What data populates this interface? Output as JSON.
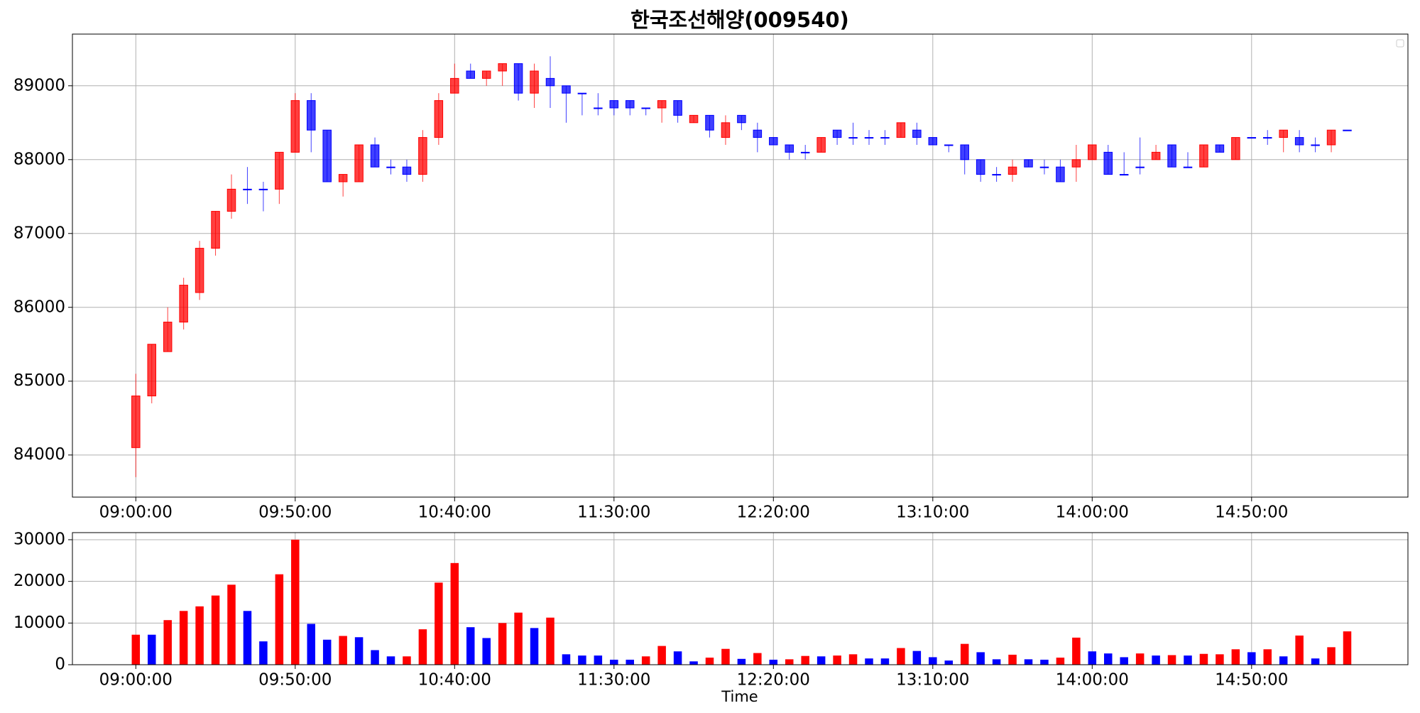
{
  "chart_data": [
    {
      "type": "candlestick",
      "title": "한국조선해양(009540)",
      "categories": [
        "09:00:00",
        null,
        null,
        null,
        null,
        null,
        null,
        null,
        null,
        null,
        "09:50:00",
        null,
        null,
        null,
        null,
        null,
        null,
        null,
        null,
        null,
        "10:40:00",
        null,
        null,
        null,
        null,
        null,
        null,
        null,
        null,
        null,
        "11:30:00",
        null,
        null,
        null,
        null,
        null,
        null,
        null,
        null,
        null,
        "12:20:00",
        null,
        null,
        null,
        null,
        null,
        null,
        null,
        null,
        null,
        "13:10:00",
        null,
        null,
        null,
        null,
        null,
        null,
        null,
        null,
        null,
        "14:00:00",
        null,
        null,
        null,
        null,
        null,
        null,
        null,
        null,
        null,
        "14:50:00",
        null,
        null,
        null,
        null,
        null,
        null
      ],
      "open": [
        84100,
        84800,
        85400,
        85800,
        86200,
        86800,
        87300,
        87600,
        87600,
        87600,
        88100,
        88800,
        88400,
        87700,
        87700,
        88200,
        87900,
        87900,
        87800,
        88300,
        88900,
        89200,
        89100,
        89200,
        89300,
        88900,
        89100,
        89000,
        88900,
        88700,
        88800,
        88800,
        88700,
        88700,
        88800,
        88500,
        88600,
        88300,
        88600,
        88400,
        88300,
        88200,
        88100,
        88100,
        88400,
        88300,
        88300,
        88300,
        88300,
        88400,
        88300,
        88200,
        88200,
        88000,
        87800,
        87800,
        88000,
        87900,
        87900,
        87900,
        88000,
        88100,
        87800,
        87900,
        88000,
        88200,
        87900,
        87900,
        88200,
        88000,
        88300,
        88300,
        88300,
        88300,
        88200,
        88200,
        88400
      ],
      "high": [
        85100,
        85500,
        86000,
        86400,
        86900,
        87300,
        87800,
        87900,
        87700,
        88100,
        88900,
        88900,
        88400,
        87800,
        88200,
        88300,
        88000,
        88000,
        88400,
        88900,
        89300,
        89300,
        89200,
        89300,
        89300,
        89300,
        89400,
        89000,
        88900,
        88900,
        88800,
        88800,
        88700,
        88800,
        88800,
        88600,
        88600,
        88600,
        88600,
        88500,
        88300,
        88200,
        88200,
        88300,
        88400,
        88500,
        88400,
        88400,
        88500,
        88500,
        88300,
        88200,
        88200,
        88000,
        87900,
        88000,
        88000,
        88000,
        88000,
        88200,
        88200,
        88200,
        88100,
        88300,
        88200,
        88200,
        88100,
        88200,
        88200,
        88300,
        88300,
        88400,
        88400,
        88400,
        88300,
        88400,
        88400
      ],
      "low": [
        83700,
        84700,
        85400,
        85700,
        86100,
        86700,
        87200,
        87400,
        87300,
        87400,
        88100,
        88100,
        87700,
        87500,
        87700,
        87900,
        87800,
        87700,
        87700,
        88200,
        88900,
        89100,
        89000,
        89000,
        88800,
        88700,
        88700,
        88500,
        88600,
        88600,
        88600,
        88600,
        88600,
        88500,
        88500,
        88500,
        88300,
        88200,
        88400,
        88100,
        88200,
        88000,
        88000,
        88100,
        88200,
        88200,
        88200,
        88200,
        88300,
        88200,
        88200,
        88100,
        87800,
        87700,
        87700,
        87700,
        87900,
        87800,
        87700,
        87700,
        88000,
        87800,
        87800,
        87800,
        88000,
        87900,
        87900,
        87900,
        88100,
        88000,
        88300,
        88200,
        88100,
        88100,
        88100,
        88100,
        88400
      ],
      "close": [
        84800,
        85500,
        85800,
        86300,
        86800,
        87300,
        87600,
        87600,
        87600,
        88100,
        88800,
        88400,
        87700,
        87800,
        88200,
        87900,
        87900,
        87800,
        88300,
        88800,
        89100,
        89100,
        89200,
        89300,
        88900,
        89200,
        89000,
        88900,
        88900,
        88700,
        88700,
        88700,
        88700,
        88800,
        88600,
        88600,
        88400,
        88500,
        88500,
        88300,
        88200,
        88100,
        88100,
        88300,
        88300,
        88300,
        88300,
        88300,
        88500,
        88300,
        88200,
        88200,
        88000,
        87800,
        87800,
        87900,
        87900,
        87900,
        87700,
        88000,
        88200,
        87800,
        87800,
        87900,
        88100,
        87900,
        87900,
        88200,
        88100,
        88300,
        88300,
        88300,
        88400,
        88200,
        88200,
        88400,
        88400
      ],
      "up_color": "#ff0000",
      "down_color": "#0000ff",
      "ylim": [
        83430,
        89700
      ],
      "yticks": [
        84000,
        85000,
        86000,
        87000,
        88000,
        89000
      ],
      "grid": true
    },
    {
      "type": "bar",
      "x_label": "Time",
      "categories": [
        "09:00:00",
        null,
        null,
        null,
        null,
        null,
        null,
        null,
        null,
        null,
        "09:50:00",
        null,
        null,
        null,
        null,
        null,
        null,
        null,
        null,
        null,
        "10:40:00",
        null,
        null,
        null,
        null,
        null,
        null,
        null,
        null,
        null,
        "11:30:00",
        null,
        null,
        null,
        null,
        null,
        null,
        null,
        null,
        null,
        "12:20:00",
        null,
        null,
        null,
        null,
        null,
        null,
        null,
        null,
        null,
        "13:10:00",
        null,
        null,
        null,
        null,
        null,
        null,
        null,
        null,
        null,
        "14:00:00",
        null,
        null,
        null,
        null,
        null,
        null,
        null,
        null,
        null,
        "14:50:00",
        null,
        null,
        null,
        null,
        null,
        null
      ],
      "values": [
        7200,
        7200,
        10700,
        12900,
        14000,
        16600,
        19200,
        12900,
        5600,
        21700,
        30000,
        9800,
        6000,
        6900,
        6600,
        3500,
        2000,
        2000,
        8500,
        19700,
        24400,
        9000,
        6400,
        10000,
        12500,
        8800,
        11300,
        2500,
        2200,
        2200,
        1200,
        1200,
        2000,
        4500,
        3200,
        800,
        1700,
        3800,
        1400,
        2800,
        1200,
        1300,
        2100,
        2000,
        2200,
        2500,
        1500,
        1500,
        4000,
        3300,
        1800,
        1000,
        5000,
        3000,
        1300,
        2400,
        1300,
        1200,
        1700,
        6500,
        3200,
        2700,
        1800,
        2700,
        2200,
        2300,
        2200,
        2600,
        2500,
        3700,
        3000,
        3700,
        2000,
        7000,
        1500,
        4200,
        8000
      ],
      "colors": [
        "#ff0000",
        "#0000ff",
        "#ff0000",
        "#ff0000",
        "#ff0000",
        "#ff0000",
        "#ff0000",
        "#0000ff",
        "#0000ff",
        "#ff0000",
        "#ff0000",
        "#0000ff",
        "#0000ff",
        "#ff0000",
        "#0000ff",
        "#0000ff",
        "#0000ff",
        "#ff0000",
        "#ff0000",
        "#ff0000",
        "#ff0000",
        "#0000ff",
        "#0000ff",
        "#ff0000",
        "#ff0000",
        "#0000ff",
        "#ff0000",
        "#0000ff",
        "#0000ff",
        "#0000ff",
        "#0000ff",
        "#0000ff",
        "#ff0000",
        "#ff0000",
        "#0000ff",
        "#0000ff",
        "#ff0000",
        "#ff0000",
        "#0000ff",
        "#ff0000",
        "#0000ff",
        "#ff0000",
        "#ff0000",
        "#0000ff",
        "#ff0000",
        "#ff0000",
        "#0000ff",
        "#0000ff",
        "#ff0000",
        "#0000ff",
        "#0000ff",
        "#0000ff",
        "#ff0000",
        "#0000ff",
        "#0000ff",
        "#ff0000",
        "#0000ff",
        "#0000ff",
        "#ff0000",
        "#ff0000",
        "#0000ff",
        "#0000ff",
        "#0000ff",
        "#ff0000",
        "#0000ff",
        "#ff0000",
        "#0000ff",
        "#ff0000",
        "#ff0000",
        "#ff0000",
        "#0000ff",
        "#ff0000",
        "#0000ff",
        "#ff0000",
        "#0000ff",
        "#ff0000",
        "#ff0000"
      ],
      "ylim": [
        0,
        31700
      ],
      "yticks": [
        0,
        10000,
        20000,
        30000
      ],
      "grid": true
    }
  ]
}
